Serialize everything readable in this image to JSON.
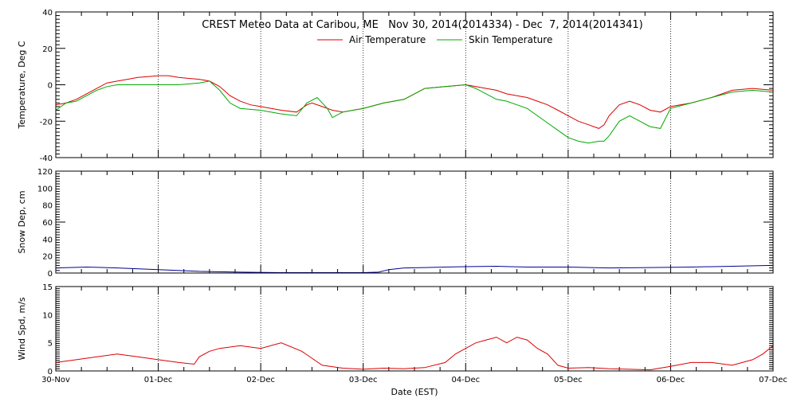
{
  "chart_data": {
    "type": "line",
    "title": "CREST Meteo Data at Caribou, ME   Nov 30, 2014(2014334) - Dec  7, 2014(2014341)",
    "xlabel": "Date (EST)",
    "x_ticks": [
      "30-Nov",
      "01-Dec",
      "02-Dec",
      "03-Dec",
      "04-Dec",
      "05-Dec",
      "06-Dec",
      "07-Dec"
    ],
    "x_range_days": [
      0,
      7
    ],
    "grid": true,
    "panels": [
      {
        "id": "temperature",
        "ylabel": "Temperature, Deg C",
        "ylim": [
          -40,
          40
        ],
        "yticks": [
          -40,
          -20,
          0,
          20,
          40
        ],
        "legend_position": "top-center",
        "series": [
          {
            "name": "Air Temperature",
            "color": "#dd0000",
            "x": [
              0,
              0.1,
              0.2,
              0.3,
              0.4,
              0.5,
              0.6,
              0.7,
              0.8,
              0.9,
              1.0,
              1.1,
              1.2,
              1.3,
              1.4,
              1.5,
              1.6,
              1.7,
              1.8,
              1.9,
              2.0,
              2.2,
              2.35,
              2.45,
              2.5,
              2.6,
              2.7,
              2.8,
              3.0,
              3.2,
              3.4,
              3.6,
              3.8,
              4.0,
              4.1,
              4.2,
              4.3,
              4.4,
              4.5,
              4.6,
              4.7,
              4.8,
              4.9,
              5.0,
              5.1,
              5.2,
              5.3,
              5.35,
              5.4,
              5.5,
              5.6,
              5.7,
              5.8,
              5.9,
              6.0,
              6.2,
              6.4,
              6.6,
              6.8,
              7.0
            ],
            "values": [
              -11,
              -10,
              -8,
              -5,
              -2,
              1,
              2,
              3,
              4,
              4.5,
              5,
              5,
              4,
              3.5,
              3,
              2,
              -1,
              -6,
              -9,
              -11,
              -12,
              -14,
              -15,
              -11,
              -10,
              -12,
              -14,
              -15,
              -13,
              -10,
              -8,
              -2,
              -1,
              0,
              -1,
              -2,
              -3,
              -5,
              -6,
              -7,
              -9,
              -11,
              -14,
              -17,
              -20,
              -22,
              -24,
              -22,
              -17,
              -11,
              -9,
              -11,
              -14,
              -15,
              -12,
              -10,
              -7,
              -3,
              -2,
              -3
            ]
          },
          {
            "name": "Skin Temperature",
            "color": "#00aa00",
            "x": [
              0,
              0.1,
              0.2,
              0.3,
              0.4,
              0.5,
              0.6,
              0.8,
              1.0,
              1.2,
              1.4,
              1.5,
              1.6,
              1.7,
              1.8,
              2.0,
              2.2,
              2.35,
              2.45,
              2.55,
              2.65,
              2.7,
              2.8,
              3.0,
              3.2,
              3.4,
              3.6,
              3.8,
              4.0,
              4.1,
              4.2,
              4.3,
              4.4,
              4.5,
              4.6,
              4.7,
              4.8,
              4.9,
              5.0,
              5.1,
              5.2,
              5.3,
              5.35,
              5.4,
              5.5,
              5.6,
              5.7,
              5.8,
              5.9,
              6.0,
              6.2,
              6.4,
              6.6,
              6.8,
              7.0
            ],
            "values": [
              -14,
              -10,
              -9,
              -6,
              -3,
              -1,
              0,
              0,
              0,
              0,
              1,
              2,
              -3,
              -10,
              -13,
              -14,
              -16,
              -17,
              -10,
              -7,
              -13,
              -18,
              -15,
              -13,
              -10,
              -8,
              -2,
              -1,
              0,
              -2,
              -5,
              -8,
              -9,
              -11,
              -13,
              -17,
              -21,
              -25,
              -29,
              -31,
              -32,
              -31,
              -31,
              -28,
              -20,
              -17,
              -20,
              -23,
              -24,
              -13,
              -10,
              -7,
              -4,
              -3,
              -4
            ]
          }
        ]
      },
      {
        "id": "snow-depth",
        "ylabel": "Snow Dep, cm",
        "ylim": [
          0,
          120
        ],
        "yticks": [
          0,
          20,
          40,
          60,
          80,
          100,
          120
        ],
        "series": [
          {
            "name": "",
            "color": "#000099",
            "x": [
              0,
              0.3,
              0.6,
              1.0,
              1.4,
              1.8,
              2.2,
              2.6,
              3.0,
              3.15,
              3.25,
              3.4,
              3.6,
              3.8,
              4.0,
              4.3,
              4.6,
              5.0,
              5.4,
              5.8,
              6.2,
              6.6,
              7.0
            ],
            "values": [
              6,
              7,
              6,
              4,
              2,
              1,
              0.5,
              0.5,
              0.5,
              1,
              4,
              6,
              6.5,
              7,
              7.5,
              8,
              7,
              7,
              6,
              6.5,
              7,
              8,
              9
            ]
          }
        ]
      },
      {
        "id": "wind-speed",
        "ylabel": "Wind Spd, m/s",
        "ylim": [
          0,
          15
        ],
        "yticks": [
          0,
          5,
          10,
          15
        ],
        "series": [
          {
            "name": "",
            "color": "#dd0000",
            "x": [
              0,
              0.2,
              0.4,
              0.6,
              0.8,
              1.0,
              1.2,
              1.35,
              1.4,
              1.5,
              1.6,
              1.8,
              2.0,
              2.2,
              2.4,
              2.6,
              2.8,
              3.0,
              3.2,
              3.4,
              3.6,
              3.8,
              3.9,
              4.0,
              4.1,
              4.2,
              4.3,
              4.4,
              4.5,
              4.6,
              4.7,
              4.8,
              4.9,
              5.0,
              5.2,
              5.4,
              5.6,
              5.8,
              6.0,
              6.2,
              6.4,
              6.6,
              6.8,
              6.9,
              7.0
            ],
            "values": [
              1.5,
              2,
              2.5,
              3,
              2.5,
              2,
              1.5,
              1.2,
              2.5,
              3.5,
              4,
              4.5,
              4,
              5,
              3.5,
              1,
              0.5,
              0.3,
              0.5,
              0.4,
              0.6,
              1.5,
              3,
              4,
              5,
              5.5,
              6,
              5,
              6,
              5.5,
              4,
              3,
              1,
              0.5,
              0.6,
              0.4,
              0.3,
              0.2,
              0.8,
              1.5,
              1.5,
              1,
              2,
              3,
              4.5
            ]
          }
        ]
      }
    ]
  }
}
